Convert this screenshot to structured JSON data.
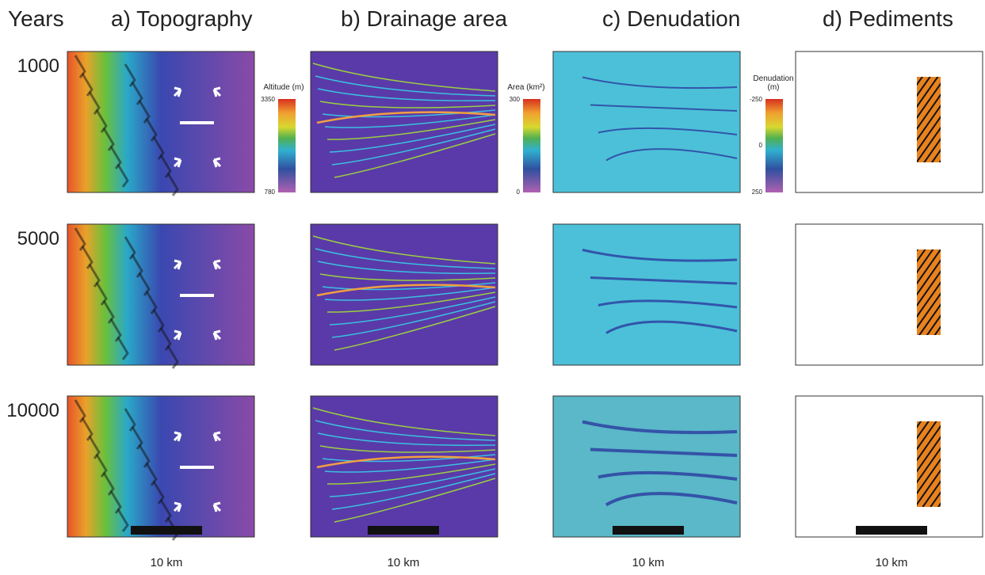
{
  "header": {
    "years": "Years",
    "columns": [
      "a) Topography",
      "b) Drainage area",
      "c) Denudation",
      "d) Pediments"
    ]
  },
  "rows": [
    "1000",
    "5000",
    "10000"
  ],
  "colorbars": [
    {
      "title": "Altitude (m)",
      "labels": [
        "3350",
        "780"
      ]
    },
    {
      "title": "Area (km²)",
      "labels": [
        "300",
        "0"
      ]
    },
    {
      "title": "Denudation (m)",
      "labels": [
        "-250",
        "0",
        "250"
      ]
    }
  ],
  "scale_bars": [
    "10 km",
    "10 km",
    "10 km",
    "10 km"
  ]
}
